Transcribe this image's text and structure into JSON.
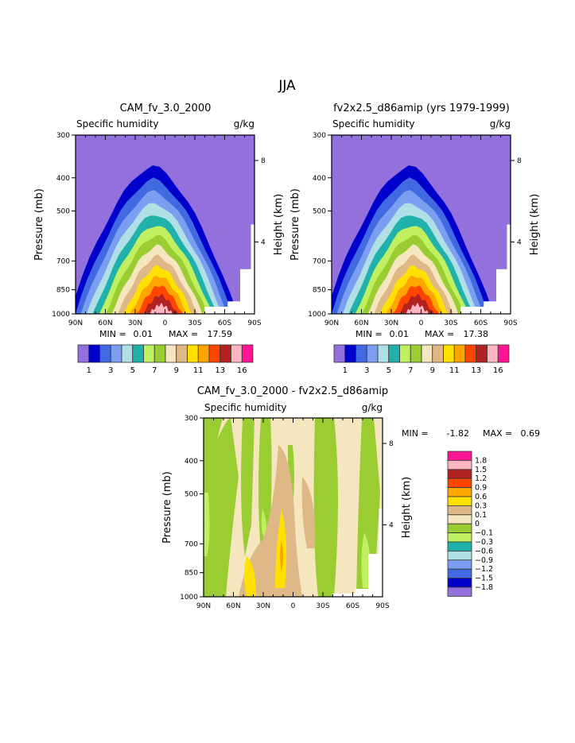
{
  "page_title": "JJA",
  "chart_data": [
    {
      "type": "heatmap",
      "title": "CAM_fv_3.0_2000",
      "left_label": "Specific humidity",
      "right_label": "g/kg",
      "ylabel": "Pressure (mb)",
      "ylabel_right": "Height (km)",
      "x_ticks": [
        "90N",
        "60N",
        "30N",
        "0",
        "30S",
        "60S",
        "90S"
      ],
      "y_ticks": [
        "300",
        "400",
        "500",
        "700",
        "850",
        "1000"
      ],
      "y_ticks_right": [
        "8",
        "4"
      ],
      "min_label": "MIN =",
      "min_value": "0.01",
      "max_label": "MAX =",
      "max_value": "17.59",
      "levels": [
        "1",
        "2",
        "3",
        "4",
        "5",
        "6",
        "7",
        "8",
        "9",
        "10",
        "11",
        "12",
        "13",
        "14",
        "16"
      ],
      "colorbar_labels": [
        "1",
        "3",
        "5",
        "7",
        "9",
        "11",
        "13",
        "16"
      ],
      "description": "Zonal-mean specific humidity peaking near 1000 mb around 10N, decreasing with height and toward poles"
    },
    {
      "type": "heatmap",
      "title": "fv2x2.5_d86amip (yrs 1979-1999)",
      "left_label": "Specific humidity",
      "right_label": "g/kg",
      "ylabel": "Pressure (mb)",
      "ylabel_right": "Height (km)",
      "x_ticks": [
        "90N",
        "60N",
        "30N",
        "0",
        "30S",
        "60S",
        "90S"
      ],
      "y_ticks": [
        "300",
        "400",
        "500",
        "700",
        "850",
        "1000"
      ],
      "y_ticks_right": [
        "8",
        "4"
      ],
      "min_label": "MIN =",
      "min_value": "0.01",
      "max_label": "MAX =",
      "max_value": "17.38",
      "levels": [
        "1",
        "2",
        "3",
        "4",
        "5",
        "6",
        "7",
        "8",
        "9",
        "10",
        "11",
        "12",
        "13",
        "14",
        "16"
      ],
      "colorbar_labels": [
        "1",
        "3",
        "5",
        "7",
        "9",
        "11",
        "13",
        "16"
      ]
    },
    {
      "type": "heatmap",
      "title": "CAM_fv_3.0_2000 - fv2x2.5_d86amip",
      "left_label": "Specific humidity",
      "right_label": "g/kg",
      "ylabel": "Pressure (mb)",
      "ylabel_right": "Height (km)",
      "x_ticks": [
        "90N",
        "60N",
        "30N",
        "0",
        "30S",
        "60S",
        "90S"
      ],
      "y_ticks": [
        "300",
        "400",
        "500",
        "700",
        "850",
        "1000"
      ],
      "y_ticks_right": [
        "8",
        "4"
      ],
      "min_label": "MIN =",
      "min_value": "-1.82",
      "max_label": "MAX =",
      "max_value": "0.69",
      "colorbar_labels": [
        "1.8",
        "1.5",
        "1.2",
        "0.9",
        "0.6",
        "0.3",
        "0.1",
        "0",
        "-0.1",
        "-0.3",
        "-0.6",
        "-0.9",
        "-1.2",
        "-1.5",
        "-1.8"
      ]
    }
  ],
  "colors": {
    "abs_palette": [
      "#9370DB",
      "#0000CD",
      "#4169E1",
      "#7B9EF0",
      "#B0E0E6",
      "#20B2AA",
      "#C0F060",
      "#9ACD32",
      "#F5E6C0",
      "#DEB887",
      "#FFE000",
      "#FFA500",
      "#FF4500",
      "#B22222",
      "#FFB6C1",
      "#FF1493"
    ],
    "diff_palette_top_to_bottom": [
      "#FF1493",
      "#FFB6C1",
      "#B22222",
      "#FF4500",
      "#FFA500",
      "#FFE000",
      "#DEB887",
      "#F5E6C0",
      "#9ACD32",
      "#C0F060",
      "#20B2AA",
      "#B0E0E6",
      "#7B9EF0",
      "#4169E1",
      "#0000CD",
      "#9370DB"
    ]
  }
}
